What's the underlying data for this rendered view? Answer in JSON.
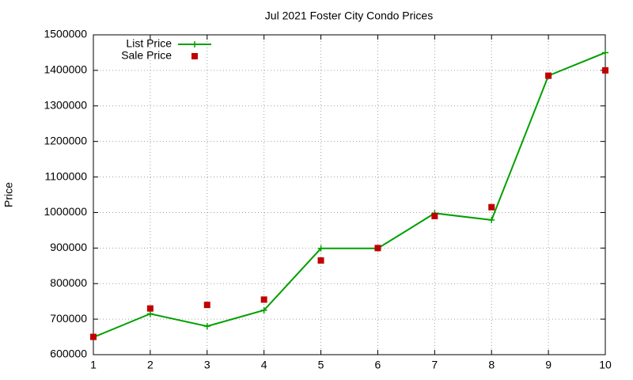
{
  "chart_data": {
    "type": "line",
    "title": "Jul 2021 Foster City Condo Prices",
    "y_label": "Price",
    "x": [
      1,
      2,
      3,
      4,
      5,
      6,
      7,
      8,
      9,
      10
    ],
    "series": [
      {
        "name": "List Price",
        "color": "#00a000",
        "marker": "plus",
        "line": true,
        "values": [
          649000,
          715000,
          680000,
          725000,
          899000,
          899000,
          998000,
          979000,
          1385000,
          1450000
        ]
      },
      {
        "name": "Sale Price",
        "color": "#c00000",
        "marker": "square",
        "line": false,
        "values": [
          650000,
          730000,
          740000,
          755000,
          865000,
          900000,
          990000,
          1015000,
          1385000,
          1400000
        ]
      }
    ],
    "xlim": [
      1,
      10
    ],
    "xticks": [
      1,
      2,
      3,
      4,
      5,
      6,
      7,
      8,
      9,
      10
    ],
    "ylim": [
      600000,
      1500000
    ],
    "yticks": [
      600000,
      700000,
      800000,
      900000,
      1000000,
      1100000,
      1200000,
      1300000,
      1400000,
      1500000
    ],
    "grid": true,
    "legend": "top-left"
  }
}
